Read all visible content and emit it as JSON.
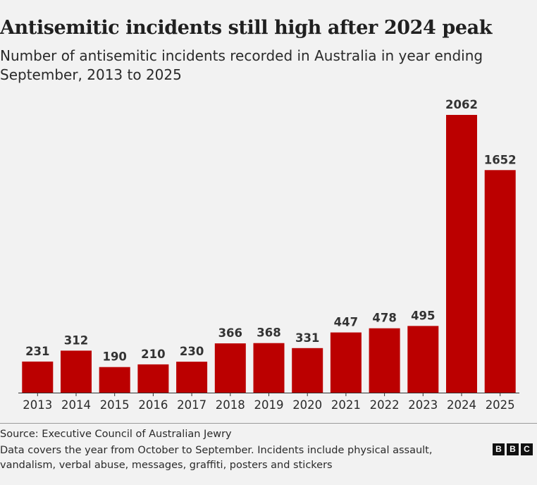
{
  "chart_data": {
    "type": "bar",
    "title": "Antisemitic incidents still high after 2024 peak",
    "subtitle": "Number of antisemitic incidents recorded in Australia in year ending September, 2013 to 2025",
    "categories": [
      "2013",
      "2014",
      "2015",
      "2016",
      "2017",
      "2018",
      "2019",
      "2020",
      "2021",
      "2022",
      "2023",
      "2024",
      "2025"
    ],
    "values": [
      231,
      312,
      190,
      210,
      230,
      366,
      368,
      331,
      447,
      478,
      495,
      2062,
      1652
    ],
    "value_labels": [
      "231",
      "312",
      "190",
      "210",
      "230",
      "366",
      "368",
      "331",
      "447",
      "478",
      "495",
      "2062",
      "1652"
    ],
    "xlabel": "",
    "ylabel": "",
    "ylim": [
      0,
      2062
    ],
    "grid": false,
    "bar_color": "#bb0000"
  },
  "footer": {
    "source": "Source: Executive Council of Australian Jewry",
    "note": "Data covers the year from October to September. Incidents include physical assault, vandalism, verbal abuse, messages, graffiti, posters and stickers"
  },
  "logo": {
    "letters": [
      "B",
      "B",
      "C"
    ]
  },
  "colors": {
    "background": "#f2f2f2",
    "bar": "#bb0000",
    "text": "#222222"
  }
}
